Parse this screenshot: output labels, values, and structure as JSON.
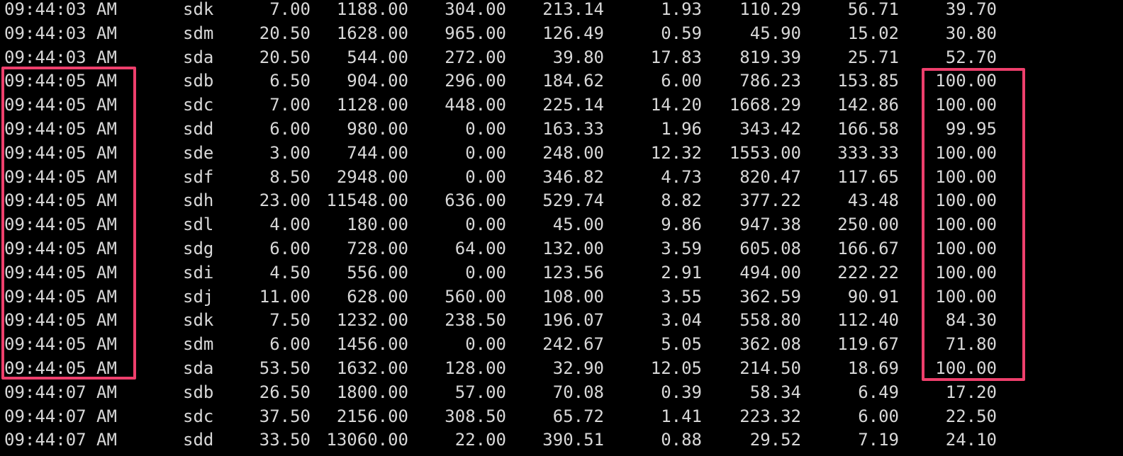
{
  "rows": [
    {
      "time": "09:44:03 AM",
      "device": "sdk",
      "v": [
        "7.00",
        "1188.00",
        "304.00",
        "213.14",
        "1.93",
        "110.29",
        "56.71",
        "39.70"
      ]
    },
    {
      "time": "09:44:03 AM",
      "device": "sdm",
      "v": [
        "20.50",
        "1628.00",
        "965.00",
        "126.49",
        "0.59",
        "45.90",
        "15.02",
        "30.80"
      ]
    },
    {
      "time": "09:44:03 AM",
      "device": "sda",
      "v": [
        "20.50",
        "544.00",
        "272.00",
        "39.80",
        "17.83",
        "819.39",
        "25.71",
        "52.70"
      ]
    },
    {
      "time": "09:44:05 AM",
      "device": "sdb",
      "v": [
        "6.50",
        "904.00",
        "296.00",
        "184.62",
        "6.00",
        "786.23",
        "153.85",
        "100.00"
      ]
    },
    {
      "time": "09:44:05 AM",
      "device": "sdc",
      "v": [
        "7.00",
        "1128.00",
        "448.00",
        "225.14",
        "14.20",
        "1668.29",
        "142.86",
        "100.00"
      ]
    },
    {
      "time": "09:44:05 AM",
      "device": "sdd",
      "v": [
        "6.00",
        "980.00",
        "0.00",
        "163.33",
        "1.96",
        "343.42",
        "166.58",
        "99.95"
      ]
    },
    {
      "time": "09:44:05 AM",
      "device": "sde",
      "v": [
        "3.00",
        "744.00",
        "0.00",
        "248.00",
        "12.32",
        "1553.00",
        "333.33",
        "100.00"
      ]
    },
    {
      "time": "09:44:05 AM",
      "device": "sdf",
      "v": [
        "8.50",
        "2948.00",
        "0.00",
        "346.82",
        "4.73",
        "820.47",
        "117.65",
        "100.00"
      ]
    },
    {
      "time": "09:44:05 AM",
      "device": "sdh",
      "v": [
        "23.00",
        "11548.00",
        "636.00",
        "529.74",
        "8.82",
        "377.22",
        "43.48",
        "100.00"
      ]
    },
    {
      "time": "09:44:05 AM",
      "device": "sdl",
      "v": [
        "4.00",
        "180.00",
        "0.00",
        "45.00",
        "9.86",
        "947.38",
        "250.00",
        "100.00"
      ]
    },
    {
      "time": "09:44:05 AM",
      "device": "sdg",
      "v": [
        "6.00",
        "728.00",
        "64.00",
        "132.00",
        "3.59",
        "605.08",
        "166.67",
        "100.00"
      ]
    },
    {
      "time": "09:44:05 AM",
      "device": "sdi",
      "v": [
        "4.50",
        "556.00",
        "0.00",
        "123.56",
        "2.91",
        "494.00",
        "222.22",
        "100.00"
      ]
    },
    {
      "time": "09:44:05 AM",
      "device": "sdj",
      "v": [
        "11.00",
        "628.00",
        "560.00",
        "108.00",
        "3.55",
        "362.59",
        "90.91",
        "100.00"
      ]
    },
    {
      "time": "09:44:05 AM",
      "device": "sdk",
      "v": [
        "7.50",
        "1232.00",
        "238.50",
        "196.07",
        "3.04",
        "558.80",
        "112.40",
        "84.30"
      ]
    },
    {
      "time": "09:44:05 AM",
      "device": "sdm",
      "v": [
        "6.00",
        "1456.00",
        "0.00",
        "242.67",
        "5.05",
        "362.08",
        "119.67",
        "71.80"
      ]
    },
    {
      "time": "09:44:05 AM",
      "device": "sda",
      "v": [
        "53.50",
        "1632.00",
        "128.00",
        "32.90",
        "12.05",
        "214.50",
        "18.69",
        "100.00"
      ]
    },
    {
      "time": "09:44:07 AM",
      "device": "sdb",
      "v": [
        "26.50",
        "1800.00",
        "57.00",
        "70.08",
        "0.39",
        "58.34",
        "6.49",
        "17.20"
      ]
    },
    {
      "time": "09:44:07 AM",
      "device": "sdc",
      "v": [
        "37.50",
        "2156.00",
        "308.50",
        "65.72",
        "1.41",
        "223.32",
        "6.00",
        "22.50"
      ]
    },
    {
      "time": "09:44:07 AM",
      "device": "sdd",
      "v": [
        "33.50",
        "13060.00",
        "22.00",
        "390.51",
        "0.88",
        "29.52",
        "7.19",
        "24.10"
      ]
    }
  ],
  "colors": {
    "background": "#000000",
    "text": "#d8d8d8",
    "highlight": "#ee3f6c"
  }
}
